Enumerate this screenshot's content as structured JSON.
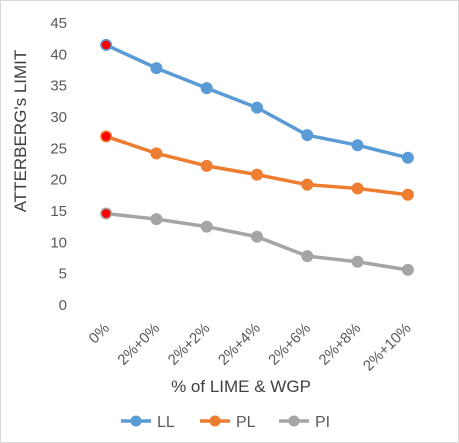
{
  "chart_data": {
    "type": "line",
    "title": "",
    "xlabel": "% of LIME & WGP",
    "ylabel": "ATTERBERG's LIMIT",
    "categories": [
      "0%",
      "2%+0%",
      "2%+2%",
      "2%+4%",
      "2%+6%",
      "2%+8%",
      "2%+10%"
    ],
    "ylim": [
      0,
      45
    ],
    "yticks": [
      "0",
      "5",
      "10",
      "15",
      "20",
      "25",
      "30",
      "35",
      "40",
      "45"
    ],
    "grid": false,
    "legend_position": "bottom",
    "series": [
      {
        "name": "LL",
        "color": "#5b9bd5",
        "values": [
          41.5,
          37.8,
          34.6,
          31.5,
          27.1,
          25.5,
          23.5
        ]
      },
      {
        "name": "PL",
        "color": "#ed7d31",
        "values": [
          26.9,
          24.2,
          22.2,
          20.8,
          19.2,
          18.6,
          17.6
        ]
      },
      {
        "name": "PI",
        "color": "#a5a5a5",
        "values": [
          14.6,
          13.7,
          12.5,
          10.9,
          7.8,
          6.9,
          5.6
        ]
      }
    ],
    "highlight_marker_color": "#ff0000"
  }
}
